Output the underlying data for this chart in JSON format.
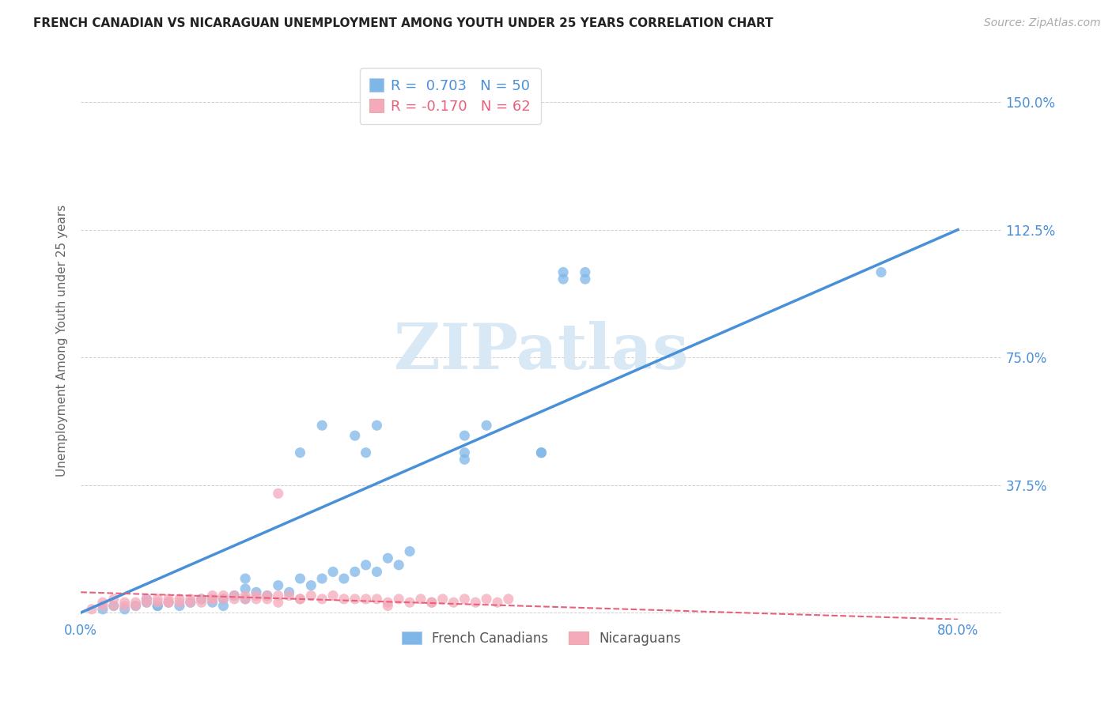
{
  "title": "FRENCH CANADIAN VS NICARAGUAN UNEMPLOYMENT AMONG YOUTH UNDER 25 YEARS CORRELATION CHART",
  "source": "Source: ZipAtlas.com",
  "ylabel": "Unemployment Among Youth under 25 years",
  "x_ticks": [
    0.0,
    0.1,
    0.2,
    0.3,
    0.4,
    0.5,
    0.6,
    0.7,
    0.8
  ],
  "x_tick_labels": [
    "0.0%",
    "",
    "",
    "",
    "",
    "",
    "",
    "",
    "80.0%"
  ],
  "y_ticks": [
    0.0,
    0.375,
    0.75,
    1.125,
    1.5
  ],
  "y_tick_labels_right": [
    "",
    "37.5%",
    "75.0%",
    "112.5%",
    "150.0%"
  ],
  "xlim": [
    0.0,
    0.84
  ],
  "ylim": [
    -0.02,
    1.62
  ],
  "legend_R1": "R =  0.703",
  "legend_N1": "N = 50",
  "legend_R2": "R = -0.170",
  "legend_N2": "N = 62",
  "color_blue": "#7EB6E8",
  "color_blue_line": "#4A90D9",
  "color_pink": "#F4AABA",
  "color_pink_line": "#E8607A",
  "color_axis_blue": "#4A90D9",
  "color_watermark": "#D8E8F5",
  "background_color": "#FFFFFF",
  "grid_color": "#CCCCCC",
  "blue_scatter_x": [
    0.02,
    0.03,
    0.04,
    0.05,
    0.06,
    0.07,
    0.08,
    0.09,
    0.1,
    0.11,
    0.12,
    0.13,
    0.14,
    0.15,
    0.15,
    0.16,
    0.17,
    0.18,
    0.19,
    0.2,
    0.21,
    0.22,
    0.23,
    0.24,
    0.25,
    0.26,
    0.27,
    0.28,
    0.29,
    0.3,
    0.22,
    0.25,
    0.27,
    0.35,
    0.37,
    0.44,
    0.46,
    0.44,
    0.46,
    0.73,
    0.07,
    0.13,
    0.2,
    0.26,
    0.42,
    0.42,
    0.35,
    0.35,
    0.15,
    0.06
  ],
  "blue_scatter_y": [
    0.01,
    0.02,
    0.01,
    0.02,
    0.03,
    0.02,
    0.03,
    0.02,
    0.03,
    0.04,
    0.03,
    0.04,
    0.05,
    0.04,
    0.07,
    0.06,
    0.05,
    0.08,
    0.06,
    0.1,
    0.08,
    0.1,
    0.12,
    0.1,
    0.12,
    0.14,
    0.12,
    0.16,
    0.14,
    0.18,
    0.55,
    0.52,
    0.55,
    0.52,
    0.55,
    1.0,
    1.0,
    0.98,
    0.98,
    1.0,
    0.02,
    0.02,
    0.47,
    0.47,
    0.47,
    0.47,
    0.47,
    0.45,
    0.1,
    0.04
  ],
  "pink_scatter_x": [
    0.01,
    0.02,
    0.02,
    0.03,
    0.03,
    0.04,
    0.04,
    0.05,
    0.05,
    0.06,
    0.06,
    0.07,
    0.07,
    0.08,
    0.08,
    0.09,
    0.09,
    0.1,
    0.1,
    0.11,
    0.11,
    0.12,
    0.12,
    0.13,
    0.13,
    0.14,
    0.14,
    0.15,
    0.15,
    0.16,
    0.16,
    0.17,
    0.17,
    0.18,
    0.18,
    0.19,
    0.2,
    0.21,
    0.22,
    0.23,
    0.24,
    0.25,
    0.26,
    0.27,
    0.28,
    0.29,
    0.3,
    0.31,
    0.32,
    0.33,
    0.34,
    0.35,
    0.36,
    0.37,
    0.38,
    0.39,
    0.28,
    0.18,
    0.08,
    0.12,
    0.2,
    0.32
  ],
  "pink_scatter_y": [
    0.01,
    0.02,
    0.03,
    0.02,
    0.04,
    0.02,
    0.03,
    0.02,
    0.03,
    0.03,
    0.04,
    0.03,
    0.04,
    0.03,
    0.04,
    0.03,
    0.04,
    0.03,
    0.04,
    0.03,
    0.04,
    0.04,
    0.05,
    0.04,
    0.05,
    0.04,
    0.05,
    0.04,
    0.05,
    0.04,
    0.05,
    0.04,
    0.05,
    0.35,
    0.05,
    0.05,
    0.04,
    0.05,
    0.04,
    0.05,
    0.04,
    0.04,
    0.04,
    0.04,
    0.03,
    0.04,
    0.03,
    0.04,
    0.03,
    0.04,
    0.03,
    0.04,
    0.03,
    0.04,
    0.03,
    0.04,
    0.02,
    0.03,
    0.03,
    0.04,
    0.04,
    0.03
  ],
  "blue_line_x": [
    0.0,
    0.8
  ],
  "blue_line_y": [
    0.0,
    1.125
  ],
  "pink_line_x": [
    0.0,
    0.8
  ],
  "pink_line_y": [
    0.06,
    -0.02
  ],
  "title_fontsize": 11,
  "source_fontsize": 10,
  "tick_fontsize": 12,
  "ylabel_fontsize": 11
}
